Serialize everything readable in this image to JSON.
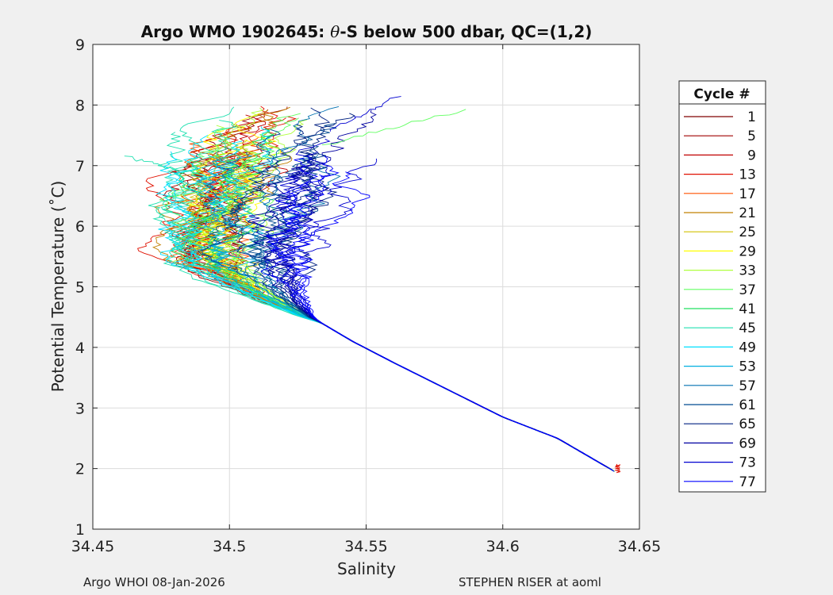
{
  "chart_data": {
    "type": "line",
    "title_parts": {
      "prefix": "Argo WMO 1902645: ",
      "symbol": "θ",
      "suffix": "-S below 500 dbar,  QC=(1,2)"
    },
    "xlabel": "Salinity",
    "ylabel": "Potential Temperature (˚C)",
    "xlim": [
      34.45,
      34.65
    ],
    "ylim": [
      1,
      9
    ],
    "xticks": [
      34.45,
      34.5,
      34.55,
      34.6,
      34.65
    ],
    "xtick_labels": [
      "34.45",
      "34.5",
      "34.55",
      "34.6",
      "34.65"
    ],
    "yticks": [
      1,
      2,
      3,
      4,
      5,
      6,
      7,
      8,
      9
    ],
    "ytick_labels": [
      "1",
      "2",
      "3",
      "4",
      "5",
      "6",
      "7",
      "8",
      "9"
    ],
    "grid": true,
    "legend": {
      "title": "Cycle #",
      "placement": "right-outside",
      "entries": [
        {
          "label": "1",
          "color": "#800000"
        },
        {
          "label": "5",
          "color": "#a00000"
        },
        {
          "label": "9",
          "color": "#c00000"
        },
        {
          "label": "13",
          "color": "#e01000"
        },
        {
          "label": "17",
          "color": "#ff5000"
        },
        {
          "label": "21",
          "color": "#c08000"
        },
        {
          "label": "25",
          "color": "#d0c000"
        },
        {
          "label": "29",
          "color": "#ffff00"
        },
        {
          "label": "33",
          "color": "#b0ff40"
        },
        {
          "label": "37",
          "color": "#60ff60"
        },
        {
          "label": "41",
          "color": "#20e060"
        },
        {
          "label": "45",
          "color": "#20e0b0"
        },
        {
          "label": "49",
          "color": "#00e0ff"
        },
        {
          "label": "53",
          "color": "#00b0e0"
        },
        {
          "label": "57",
          "color": "#0070b0"
        },
        {
          "label": "61",
          "color": "#004a90"
        },
        {
          "label": "65",
          "color": "#002080"
        },
        {
          "label": "69",
          "color": "#0000a0"
        },
        {
          "label": "73",
          "color": "#0000d0"
        },
        {
          "label": "77",
          "color": "#0000ff"
        }
      ]
    },
    "series_backbone": {
      "note": "approximate mean theta-S path shared by all profiles (salinity, theta)",
      "points": [
        [
          34.641,
          1.95
        ],
        [
          34.62,
          2.5
        ],
        [
          34.6,
          2.85
        ],
        [
          34.58,
          3.3
        ],
        [
          34.56,
          3.75
        ],
        [
          34.545,
          4.1
        ],
        [
          34.53,
          4.5
        ],
        [
          34.522,
          4.85
        ],
        [
          34.518,
          5.2
        ],
        [
          34.516,
          5.6
        ],
        [
          34.517,
          6.0
        ],
        [
          34.52,
          6.5
        ],
        [
          34.524,
          7.0
        ],
        [
          34.53,
          7.5
        ],
        [
          34.54,
          7.9
        ]
      ]
    },
    "series_offsets": {
      "note": "per-cycle salinity offset applied in the upper (theta>4.5) branch, in PSU",
      "values": [
        -0.028,
        -0.027,
        -0.026,
        -0.025,
        -0.024,
        -0.022,
        -0.02,
        -0.018,
        -0.016,
        -0.02,
        -0.026,
        -0.034,
        -0.03,
        -0.02,
        -0.01,
        -0.005,
        0.0,
        0.003,
        0.006,
        0.008
      ]
    },
    "highlight_points": {
      "note": "notable extremes visible in the figure (salinity, theta)",
      "points": [
        [
          34.586,
          7.92
        ],
        [
          34.562,
          8.15
        ],
        [
          34.462,
          7.15
        ],
        [
          34.642,
          1.93
        ]
      ]
    }
  },
  "footer": {
    "left": "Argo WHOI 08-Jan-2026",
    "right": "STEPHEN RISER at aoml"
  }
}
